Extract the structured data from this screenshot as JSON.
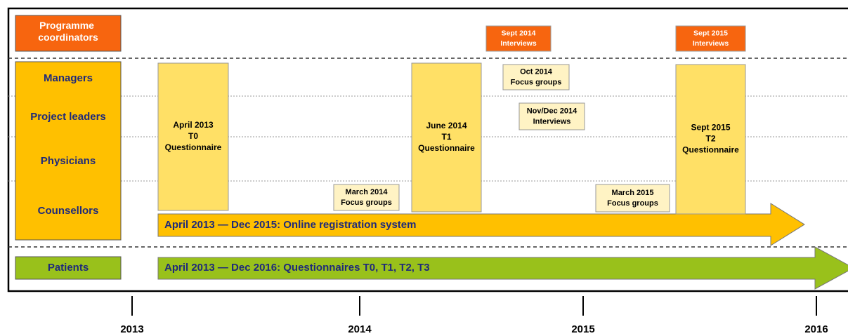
{
  "rows": [
    "Programme coordinators",
    "Managers",
    "Project leaders",
    "Physicians",
    "Counsellors",
    "Patients"
  ],
  "events": [
    {
      "lines": [
        "April 2013",
        "T0",
        "Questionnaire"
      ]
    },
    {
      "lines": [
        "June 2014",
        "T1",
        "Questionnaire"
      ]
    },
    {
      "lines": [
        "Sept 2015",
        "T2",
        "Questionnaire"
      ]
    },
    {
      "lines": [
        "Sept 2014",
        "Interviews"
      ]
    },
    {
      "lines": [
        "Sept 2015",
        "Interviews"
      ]
    },
    {
      "lines": [
        "Oct 2014",
        "Focus groups"
      ]
    },
    {
      "lines": [
        "Nov/Dec 2014",
        "Interviews"
      ]
    },
    {
      "lines": [
        "March 2014",
        "Focus groups"
      ]
    },
    {
      "lines": [
        "March 2015",
        "Focus groups"
      ]
    }
  ],
  "arrows": [
    "April 2013 — Dec 2015: Online registration system",
    "April 2013 — Dec 2016: Questionnaires T0, T1, T2, T3"
  ],
  "years": [
    "2013",
    "2014",
    "2015",
    "2016"
  ]
}
